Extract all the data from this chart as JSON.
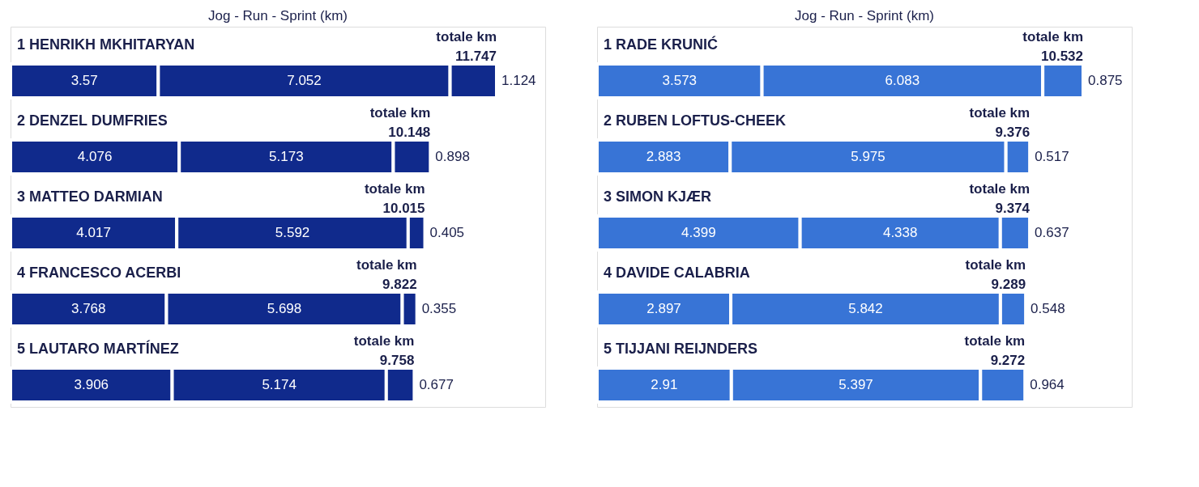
{
  "chart_data": [
    {
      "type": "bar",
      "orientation": "horizontal",
      "stacked": true,
      "data_labels": true,
      "title": "Jog - Run - Sprint   (km)",
      "categories": [
        "1 HENRIKH MKHITARYAN",
        "2 DENZEL DUMFRIES",
        "3 MATTEO DARMIAN",
        "4 FRANCESCO ACERBI",
        "5 LAUTARO MARTÍNEZ"
      ],
      "series": [
        {
          "color": "#102a8c",
          "values": [
            3.57,
            4.076,
            4.017,
            3.768,
            3.906
          ]
        },
        {
          "color": "#102a8c",
          "values": [
            7.052,
            5.173,
            5.592,
            5.698,
            5.174
          ]
        },
        {
          "color": "#102a8c",
          "values": [
            1.124,
            0.898,
            0.405,
            0.355,
            0.677
          ]
        }
      ],
      "totals": [
        "totale km 11.747",
        "totale km 10.148",
        "totale km 10.015",
        "totale km 9.822",
        "totale km 9.758"
      ]
    },
    {
      "type": "bar",
      "orientation": "horizontal",
      "stacked": true,
      "data_labels": true,
      "title": "Jog - Run - Sprint   (km)",
      "categories": [
        "1 RADE KRUNIĆ",
        "2 RUBEN LOFTUS-CHEEK",
        "3 SIMON KJÆR",
        "4 DAVIDE CALABRIA",
        "5 TIJJANI REIJNDERS"
      ],
      "series": [
        {
          "color": "#3874d6",
          "values": [
            3.573,
            2.883,
            4.399,
            2.897,
            2.91
          ]
        },
        {
          "color": "#3874d6",
          "values": [
            6.083,
            5.975,
            4.338,
            5.842,
            5.397
          ]
        },
        {
          "color": "#3874d6",
          "values": [
            0.875,
            0.517,
            0.637,
            0.548,
            0.964
          ]
        }
      ],
      "totals": [
        "totale km 10.532",
        "totale km 9.376",
        "totale km 9.374",
        "totale km 9.289",
        "totale km 9.272"
      ]
    }
  ]
}
